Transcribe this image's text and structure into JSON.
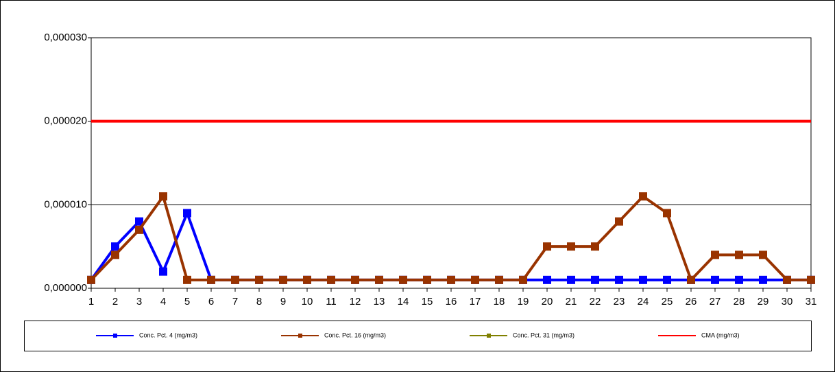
{
  "chart_data": {
    "type": "line",
    "categories": [
      "1",
      "2",
      "3",
      "4",
      "5",
      "6",
      "7",
      "8",
      "9",
      "10",
      "11",
      "12",
      "13",
      "14",
      "15",
      "16",
      "17",
      "18",
      "19",
      "20",
      "21",
      "22",
      "23",
      "24",
      "25",
      "26",
      "27",
      "28",
      "29",
      "30",
      "31"
    ],
    "series": [
      {
        "name": "Conc. Pct. 4 (mg/m3)",
        "color": "#0000ff",
        "marker": "square",
        "values": [
          1e-06,
          5e-06,
          8e-06,
          2e-06,
          9e-06,
          1e-06,
          1e-06,
          1e-06,
          1e-06,
          1e-06,
          1e-06,
          1e-06,
          1e-06,
          1e-06,
          1e-06,
          1e-06,
          1e-06,
          1e-06,
          1e-06,
          1e-06,
          1e-06,
          1e-06,
          1e-06,
          1e-06,
          1e-06,
          1e-06,
          1e-06,
          1e-06,
          1e-06,
          1e-06,
          1e-06
        ]
      },
      {
        "name": "Conc. Pct. 16 (mg/m3)",
        "color": "#993300",
        "marker": "square",
        "values": [
          1e-06,
          4e-06,
          7e-06,
          1.1e-05,
          1e-06,
          1e-06,
          1e-06,
          1e-06,
          1e-06,
          1e-06,
          1e-06,
          1e-06,
          1e-06,
          1e-06,
          1e-06,
          1e-06,
          1e-06,
          1e-06,
          1e-06,
          5e-06,
          5e-06,
          5e-06,
          8e-06,
          1.1e-05,
          9e-06,
          1e-06,
          4e-06,
          4e-06,
          4e-06,
          1e-06,
          1e-06
        ]
      },
      {
        "name": "Conc. Pct. 31 (mg/m3)",
        "color": "#808000",
        "marker": "square",
        "values": [
          null,
          null,
          null,
          null,
          null,
          null,
          null,
          null,
          null,
          null,
          null,
          null,
          null,
          null,
          null,
          null,
          null,
          null,
          null,
          null,
          null,
          null,
          null,
          null,
          null,
          null,
          null,
          null,
          null,
          null,
          null
        ]
      },
      {
        "name": "CMA (mg/m3)",
        "color": "#ff0000",
        "marker": "none",
        "values": [
          2e-05,
          2e-05,
          2e-05,
          2e-05,
          2e-05,
          2e-05,
          2e-05,
          2e-05,
          2e-05,
          2e-05,
          2e-05,
          2e-05,
          2e-05,
          2e-05,
          2e-05,
          2e-05,
          2e-05,
          2e-05,
          2e-05,
          2e-05,
          2e-05,
          2e-05,
          2e-05,
          2e-05,
          2e-05,
          2e-05,
          2e-05,
          2e-05,
          2e-05,
          2e-05,
          2e-05
        ]
      }
    ],
    "ylim": [
      0,
      3e-05
    ],
    "yticks": [
      {
        "value": 0,
        "label": "0,000000"
      },
      {
        "value": 1e-05,
        "label": "0,000010"
      },
      {
        "value": 2e-05,
        "label": "0,000020"
      },
      {
        "value": 3e-05,
        "label": "0,000030"
      }
    ],
    "grid": true,
    "legend": "bottom"
  }
}
